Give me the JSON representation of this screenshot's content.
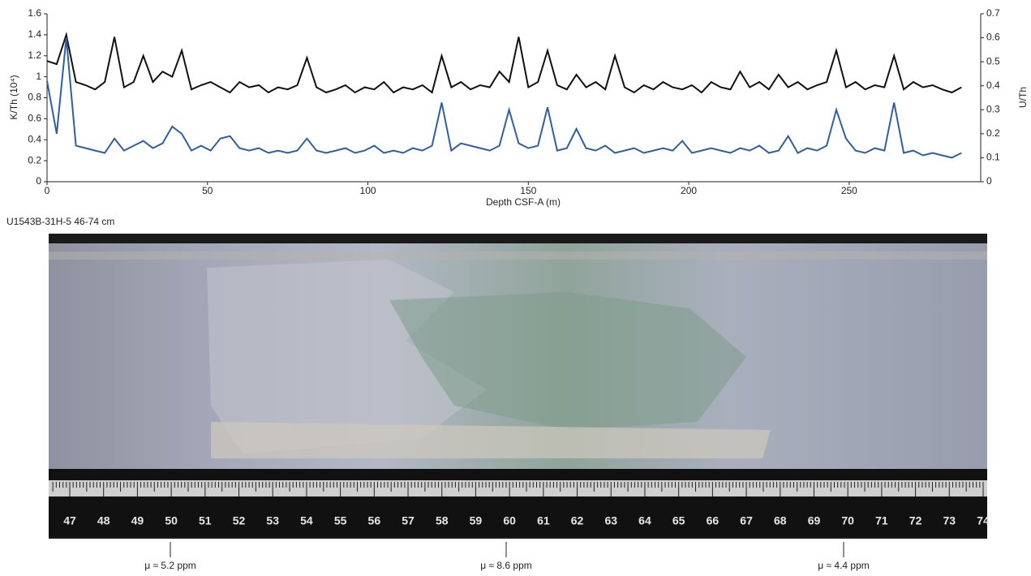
{
  "chart_data": {
    "type": "line",
    "x_label": "Depth CSF-A (m)",
    "y_label": "K/Th (10⁴)",
    "y2_label": "U/Th",
    "x": [
      0,
      3,
      6,
      9,
      12,
      15,
      18,
      21,
      24,
      27,
      30,
      33,
      36,
      39,
      42,
      45,
      48,
      51,
      54,
      57,
      60,
      63,
      66,
      69,
      72,
      75,
      78,
      81,
      84,
      87,
      90,
      93,
      96,
      99,
      102,
      105,
      108,
      111,
      114,
      117,
      120,
      123,
      126,
      129,
      132,
      135,
      138,
      141,
      144,
      147,
      150,
      153,
      156,
      159,
      162,
      165,
      168,
      171,
      174,
      177,
      180,
      183,
      186,
      189,
      192,
      195,
      198,
      201,
      204,
      207,
      210,
      213,
      216,
      219,
      222,
      225,
      228,
      231,
      234,
      237,
      240,
      243,
      246,
      249,
      252,
      255,
      258,
      261,
      264,
      267,
      270,
      273,
      276,
      279,
      282,
      285
    ],
    "series": [
      {
        "name": "K/Th",
        "color": "#111111",
        "axis": "y",
        "values": [
          1.15,
          1.12,
          1.4,
          0.95,
          0.92,
          0.88,
          0.95,
          1.38,
          0.9,
          0.95,
          1.2,
          0.95,
          1.05,
          1.0,
          1.25,
          0.88,
          0.92,
          0.95,
          0.9,
          0.85,
          0.95,
          0.9,
          0.92,
          0.85,
          0.9,
          0.88,
          0.92,
          1.18,
          0.9,
          0.85,
          0.88,
          0.92,
          0.85,
          0.9,
          0.88,
          0.95,
          0.85,
          0.9,
          0.88,
          0.92,
          0.85,
          1.2,
          0.9,
          0.95,
          0.88,
          0.92,
          0.9,
          1.05,
          0.95,
          1.38,
          0.9,
          0.95,
          1.25,
          0.92,
          0.88,
          1.02,
          0.9,
          0.95,
          0.88,
          1.2,
          0.9,
          0.85,
          0.92,
          0.88,
          0.95,
          0.9,
          0.88,
          0.92,
          0.85,
          0.95,
          0.9,
          0.88,
          1.05,
          0.9,
          0.95,
          0.88,
          1.02,
          0.9,
          0.95,
          0.88,
          0.92,
          0.95,
          1.25,
          0.9,
          0.95,
          0.88,
          0.92,
          0.9,
          1.2,
          0.88,
          0.95,
          0.9,
          0.92,
          0.88,
          0.85,
          0.9
        ]
      },
      {
        "name": "U/Th",
        "color": "#2e5fa3",
        "axis": "y2",
        "values": [
          0.42,
          0.2,
          0.6,
          0.15,
          0.14,
          0.13,
          0.12,
          0.18,
          0.13,
          0.15,
          0.17,
          0.14,
          0.16,
          0.23,
          0.2,
          0.13,
          0.15,
          0.13,
          0.18,
          0.19,
          0.14,
          0.13,
          0.14,
          0.12,
          0.13,
          0.12,
          0.13,
          0.18,
          0.13,
          0.12,
          0.13,
          0.14,
          0.12,
          0.13,
          0.15,
          0.12,
          0.13,
          0.12,
          0.14,
          0.13,
          0.15,
          0.33,
          0.13,
          0.16,
          0.15,
          0.14,
          0.13,
          0.15,
          0.3,
          0.16,
          0.14,
          0.15,
          0.31,
          0.13,
          0.14,
          0.22,
          0.14,
          0.13,
          0.15,
          0.12,
          0.13,
          0.14,
          0.12,
          0.13,
          0.14,
          0.13,
          0.17,
          0.12,
          0.13,
          0.14,
          0.13,
          0.12,
          0.14,
          0.13,
          0.15,
          0.12,
          0.13,
          0.19,
          0.12,
          0.14,
          0.13,
          0.15,
          0.3,
          0.18,
          0.13,
          0.12,
          0.14,
          0.13,
          0.33,
          0.12,
          0.13,
          0.11,
          0.12,
          0.11,
          0.1,
          0.12
        ]
      }
    ],
    "xlim": [
      0,
      291
    ],
    "xticks": [
      0,
      50,
      100,
      150,
      200,
      250
    ],
    "ylim": [
      0,
      1.6
    ],
    "yticks": [
      0,
      0.2,
      0.4,
      0.6,
      0.8,
      1,
      1.2,
      1.4,
      1.6
    ],
    "y2lim": [
      0,
      0.7
    ],
    "y2ticks": [
      0,
      0.1,
      0.2,
      0.3,
      0.4,
      0.5,
      0.6,
      0.7
    ]
  },
  "photo": {
    "caption": "U1543B-31H-5 46-74 cm",
    "ruler_labels": [
      47,
      48,
      49,
      50,
      51,
      52,
      53,
      54,
      55,
      56,
      57,
      58,
      59,
      60,
      61,
      62,
      63,
      64,
      65,
      66,
      67,
      68,
      69,
      70,
      71,
      72,
      73,
      74
    ],
    "annotations": [
      "μ ≈ 5.2 ppm",
      "μ ≈ 8.6 ppm",
      "μ ≈ 4.4 ppm"
    ]
  }
}
